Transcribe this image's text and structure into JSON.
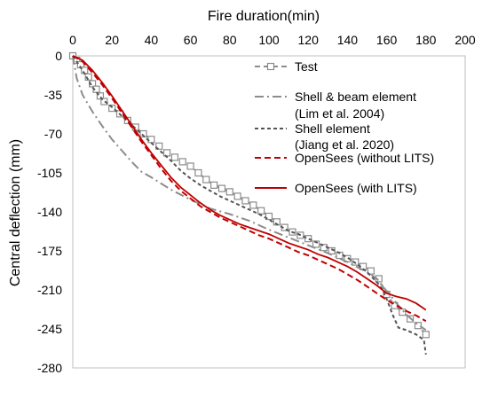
{
  "chart_data": {
    "type": "line",
    "xlabel": "Fire duration(min)",
    "ylabel": "Central deflection (mm)",
    "xlim": [
      0,
      200
    ],
    "ylim": [
      -280,
      0
    ],
    "x_ticks": [
      "0",
      "20",
      "40",
      "60",
      "80",
      "100",
      "120",
      "140",
      "160",
      "180",
      "200"
    ],
    "y_ticks": [
      "0",
      "-35",
      "-70",
      "-105",
      "-140",
      "-175",
      "-210",
      "-245",
      "-280"
    ],
    "x_axis_position": "top",
    "grid": false,
    "legend_position": "top-right",
    "series": [
      {
        "name": "Test",
        "color": "#8c8c8c",
        "dash": "6,4",
        "marker": "square",
        "x": [
          0,
          2,
          4,
          6,
          8,
          10,
          12,
          14,
          16,
          20,
          24,
          28,
          32,
          36,
          40,
          44,
          48,
          52,
          56,
          60,
          64,
          68,
          72,
          76,
          80,
          84,
          88,
          92,
          96,
          100,
          104,
          108,
          112,
          116,
          120,
          124,
          128,
          132,
          136,
          140,
          144,
          148,
          152,
          156,
          160,
          164,
          168,
          172,
          176,
          180
        ],
        "y": [
          0,
          -4,
          -8,
          -13,
          -19,
          -25,
          -30,
          -36,
          -41,
          -47,
          -52,
          -58,
          -64,
          -70,
          -75,
          -81,
          -87,
          -91,
          -95,
          -99,
          -105,
          -111,
          -116,
          -119,
          -122,
          -126,
          -130,
          -134,
          -139,
          -144,
          -149,
          -154,
          -158,
          -161,
          -164,
          -169,
          -172,
          -175,
          -179,
          -182,
          -185,
          -189,
          -193,
          -200,
          -214,
          -224,
          -230,
          -236,
          -242,
          -250
        ]
      },
      {
        "name": "Shell & beam element",
        "note": "(Lim et al. 2004)",
        "color": "#8c8c8c",
        "dash": "10,4,2,4",
        "x": [
          0,
          2,
          5,
          10,
          15,
          20,
          25,
          30,
          35,
          40,
          50,
          60,
          70,
          80,
          90,
          100,
          110,
          120,
          130,
          140,
          150,
          155,
          158,
          162,
          165,
          170,
          175,
          180
        ],
        "y": [
          0,
          -20,
          -35,
          -50,
          -63,
          -75,
          -85,
          -95,
          -104,
          -109,
          -120,
          -129,
          -137,
          -142,
          -148,
          -156,
          -163,
          -170,
          -177,
          -185,
          -194,
          -200,
          -207,
          -215,
          -222,
          -232,
          -240,
          -246
        ]
      },
      {
        "name": "Shell element",
        "note": "(Jiang et al. 2020)",
        "color": "#555555",
        "dash": "4,3",
        "x": [
          0,
          5,
          10,
          15,
          20,
          25,
          30,
          35,
          40,
          45,
          50,
          55,
          60,
          65,
          70,
          75,
          80,
          85,
          90,
          95,
          100,
          105,
          110,
          115,
          120,
          125,
          130,
          135,
          140,
          145,
          150,
          155,
          158,
          160,
          163,
          166,
          170,
          175,
          179,
          180
        ],
        "y": [
          0,
          -13,
          -28,
          -39,
          -46,
          -54,
          -62,
          -70,
          -78,
          -86,
          -94,
          -103,
          -110,
          -116,
          -121,
          -126,
          -130,
          -134,
          -138,
          -142,
          -147,
          -152,
          -157,
          -160,
          -164,
          -168,
          -172,
          -176,
          -181,
          -187,
          -194,
          -203,
          -210,
          -218,
          -232,
          -244,
          -246,
          -250,
          -255,
          -268
        ]
      },
      {
        "name": "OpenSees (without LITS)",
        "color": "#c00000",
        "dash": "7,4",
        "x": [
          0,
          5,
          10,
          15,
          20,
          25,
          30,
          35,
          40,
          45,
          50,
          55,
          60,
          65,
          70,
          75,
          80,
          85,
          90,
          95,
          100,
          105,
          110,
          115,
          120,
          125,
          130,
          135,
          140,
          145,
          150,
          155,
          160,
          165,
          170,
          175,
          180
        ],
        "y": [
          0,
          -5,
          -15,
          -26,
          -38,
          -51,
          -64,
          -77,
          -89,
          -101,
          -112,
          -121,
          -128,
          -135,
          -140,
          -145,
          -149,
          -153,
          -157,
          -161,
          -164,
          -168,
          -172,
          -176,
          -179,
          -183,
          -187,
          -191,
          -196,
          -201,
          -207,
          -213,
          -219,
          -224,
          -229,
          -233,
          -238
        ]
      },
      {
        "name": "OpenSees (with LITS)",
        "color": "#c00000",
        "dash": "",
        "x": [
          0,
          5,
          10,
          15,
          20,
          25,
          30,
          35,
          40,
          45,
          50,
          55,
          60,
          65,
          70,
          75,
          80,
          85,
          90,
          95,
          100,
          105,
          110,
          115,
          120,
          125,
          130,
          135,
          140,
          145,
          150,
          155,
          160,
          165,
          170,
          175,
          180
        ],
        "y": [
          0,
          -4,
          -13,
          -24,
          -36,
          -49,
          -62,
          -75,
          -87,
          -98,
          -109,
          -118,
          -125,
          -132,
          -138,
          -143,
          -147,
          -151,
          -154,
          -157,
          -160,
          -164,
          -168,
          -171,
          -174,
          -178,
          -181,
          -185,
          -189,
          -194,
          -200,
          -206,
          -213,
          -216,
          -218,
          -222,
          -228
        ]
      }
    ]
  }
}
